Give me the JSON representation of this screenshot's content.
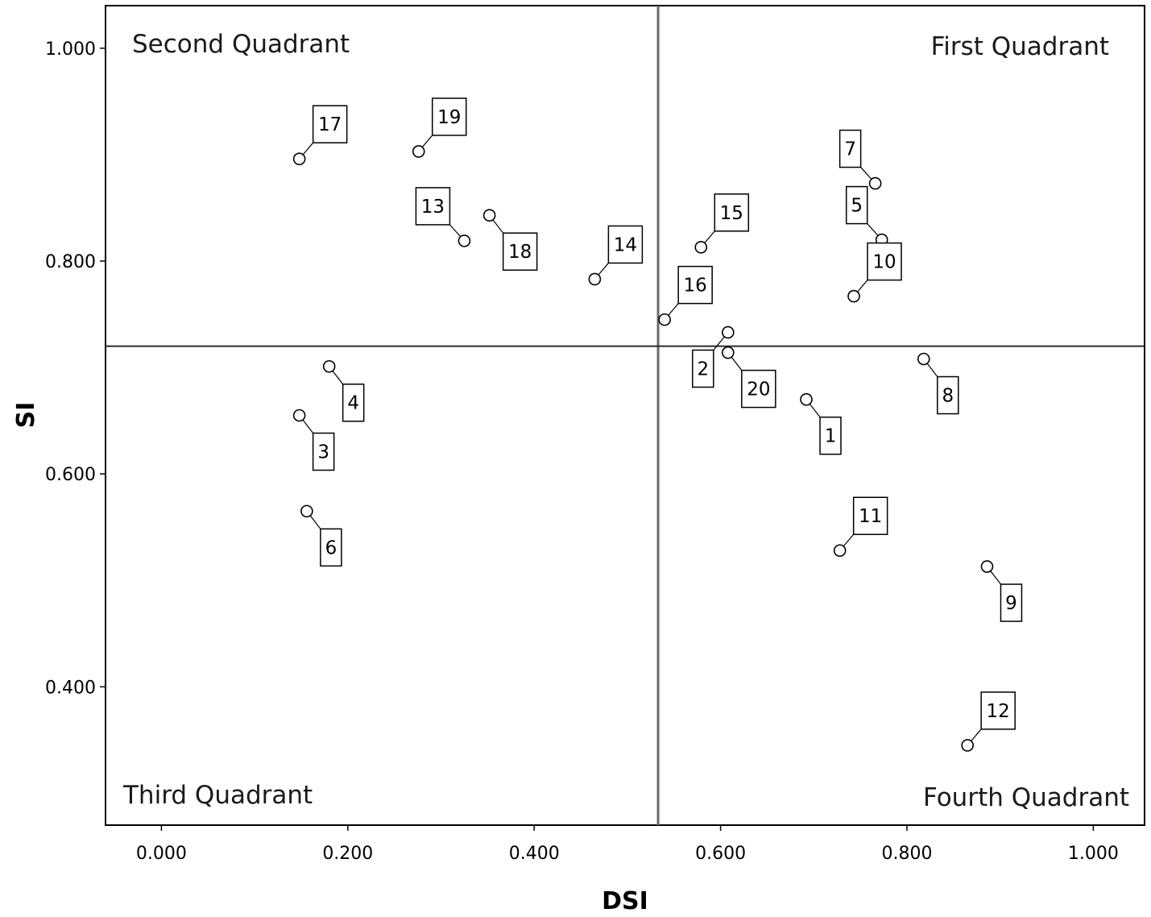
{
  "chart_data": {
    "type": "scatter",
    "xlabel": "DSI",
    "ylabel": "SI",
    "xlim": [
      -0.06,
      1.055
    ],
    "ylim": [
      0.27,
      1.04
    ],
    "xticks": [
      "0.000",
      "0.200",
      "0.400",
      "0.600",
      "0.800",
      "1.000"
    ],
    "yticks": [
      "0.400",
      "0.600",
      "0.800",
      "1.000"
    ],
    "xtick_values": [
      0.0,
      0.2,
      0.4,
      0.6,
      0.8,
      1.0
    ],
    "ytick_values": [
      0.4,
      0.6,
      0.8,
      1.0
    ],
    "reference_lines": {
      "x": 0.533,
      "y": 0.72
    },
    "quadrant_labels": {
      "first": "First Quadrant",
      "second": "Second Quadrant",
      "third": "Third Quadrant",
      "fourth": "Fourth Quadrant"
    },
    "grid": false,
    "points": [
      {
        "label": "1",
        "x": 0.692,
        "y": 0.67,
        "pos": "br"
      },
      {
        "label": "2",
        "x": 0.608,
        "y": 0.733,
        "pos": "bl"
      },
      {
        "label": "3",
        "x": 0.148,
        "y": 0.655,
        "pos": "br"
      },
      {
        "label": "4",
        "x": 0.18,
        "y": 0.701,
        "pos": "br"
      },
      {
        "label": "5",
        "x": 0.773,
        "y": 0.82,
        "pos": "tl"
      },
      {
        "label": "6",
        "x": 0.156,
        "y": 0.565,
        "pos": "br"
      },
      {
        "label": "7",
        "x": 0.766,
        "y": 0.873,
        "pos": "tl"
      },
      {
        "label": "8",
        "x": 0.818,
        "y": 0.708,
        "pos": "br"
      },
      {
        "label": "9",
        "x": 0.886,
        "y": 0.513,
        "pos": "br"
      },
      {
        "label": "10",
        "x": 0.743,
        "y": 0.767,
        "pos": "tr"
      },
      {
        "label": "11",
        "x": 0.728,
        "y": 0.528,
        "pos": "tr"
      },
      {
        "label": "12",
        "x": 0.865,
        "y": 0.345,
        "pos": "tr"
      },
      {
        "label": "13",
        "x": 0.325,
        "y": 0.819,
        "pos": "tl"
      },
      {
        "label": "14",
        "x": 0.465,
        "y": 0.783,
        "pos": "tr"
      },
      {
        "label": "15",
        "x": 0.579,
        "y": 0.813,
        "pos": "tr"
      },
      {
        "label": "16",
        "x": 0.54,
        "y": 0.745,
        "pos": "tr"
      },
      {
        "label": "17",
        "x": 0.148,
        "y": 0.896,
        "pos": "tr"
      },
      {
        "label": "18",
        "x": 0.352,
        "y": 0.843,
        "pos": "br"
      },
      {
        "label": "19",
        "x": 0.276,
        "y": 0.903,
        "pos": "tr"
      },
      {
        "label": "20",
        "x": 0.608,
        "y": 0.714,
        "pos": "br"
      }
    ]
  }
}
